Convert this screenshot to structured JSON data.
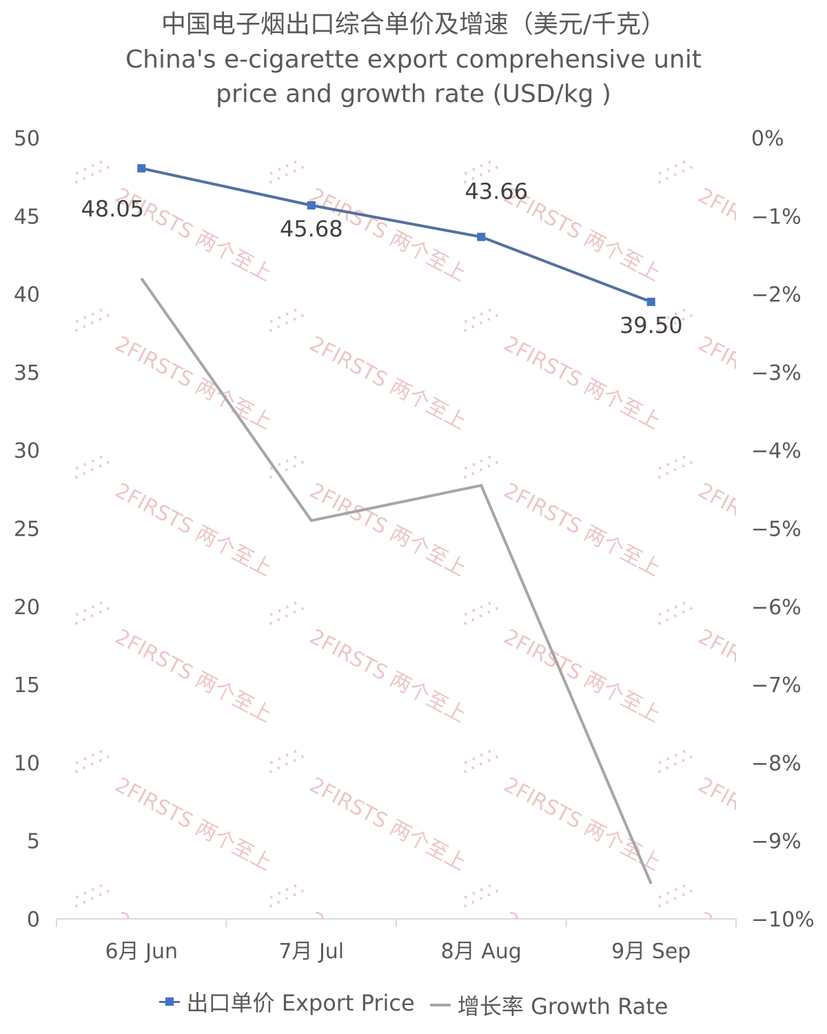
{
  "chart_data": {
    "type": "line",
    "title": "中国电子烟出口综合单价及增速（美元/千克）",
    "subtitle_lines": [
      "China's e-cigarette export comprehensive unit",
      "price and growth rate (USD/kg )"
    ],
    "categories": [
      "6月 Jun",
      "7月 Jul",
      "8月 Aug",
      "9月 Sep"
    ],
    "y_left": {
      "min": 0,
      "max": 50,
      "step": 5,
      "ticks": [
        "0",
        "5",
        "10",
        "15",
        "20",
        "25",
        "30",
        "35",
        "40",
        "45",
        "50"
      ]
    },
    "y_right": {
      "min": -10,
      "max": 0,
      "step": 1,
      "ticks": [
        "−10%",
        "−9%",
        "−8%",
        "−7%",
        "−6%",
        "−5%",
        "−4%",
        "−3%",
        "−2%",
        "−1%",
        "0%"
      ]
    },
    "series": [
      {
        "name": "出口单价 Export Price",
        "axis": "left",
        "values": [
          48.05,
          45.68,
          43.66,
          39.5
        ],
        "labels": [
          "48.05",
          "45.68",
          "43.66",
          "39.50"
        ],
        "color": "#5470a0",
        "marker_color": "#4472c4"
      },
      {
        "name": "增长率 Growth Rate",
        "axis": "right",
        "values": [
          -1.8,
          -4.9,
          -4.45,
          -9.55
        ],
        "color": "#a6a6a6"
      }
    ],
    "legend_position": "bottom",
    "grid": false
  },
  "watermark": {
    "text": "2FIRSTS 两个至上",
    "color": "#e8b4b4"
  }
}
